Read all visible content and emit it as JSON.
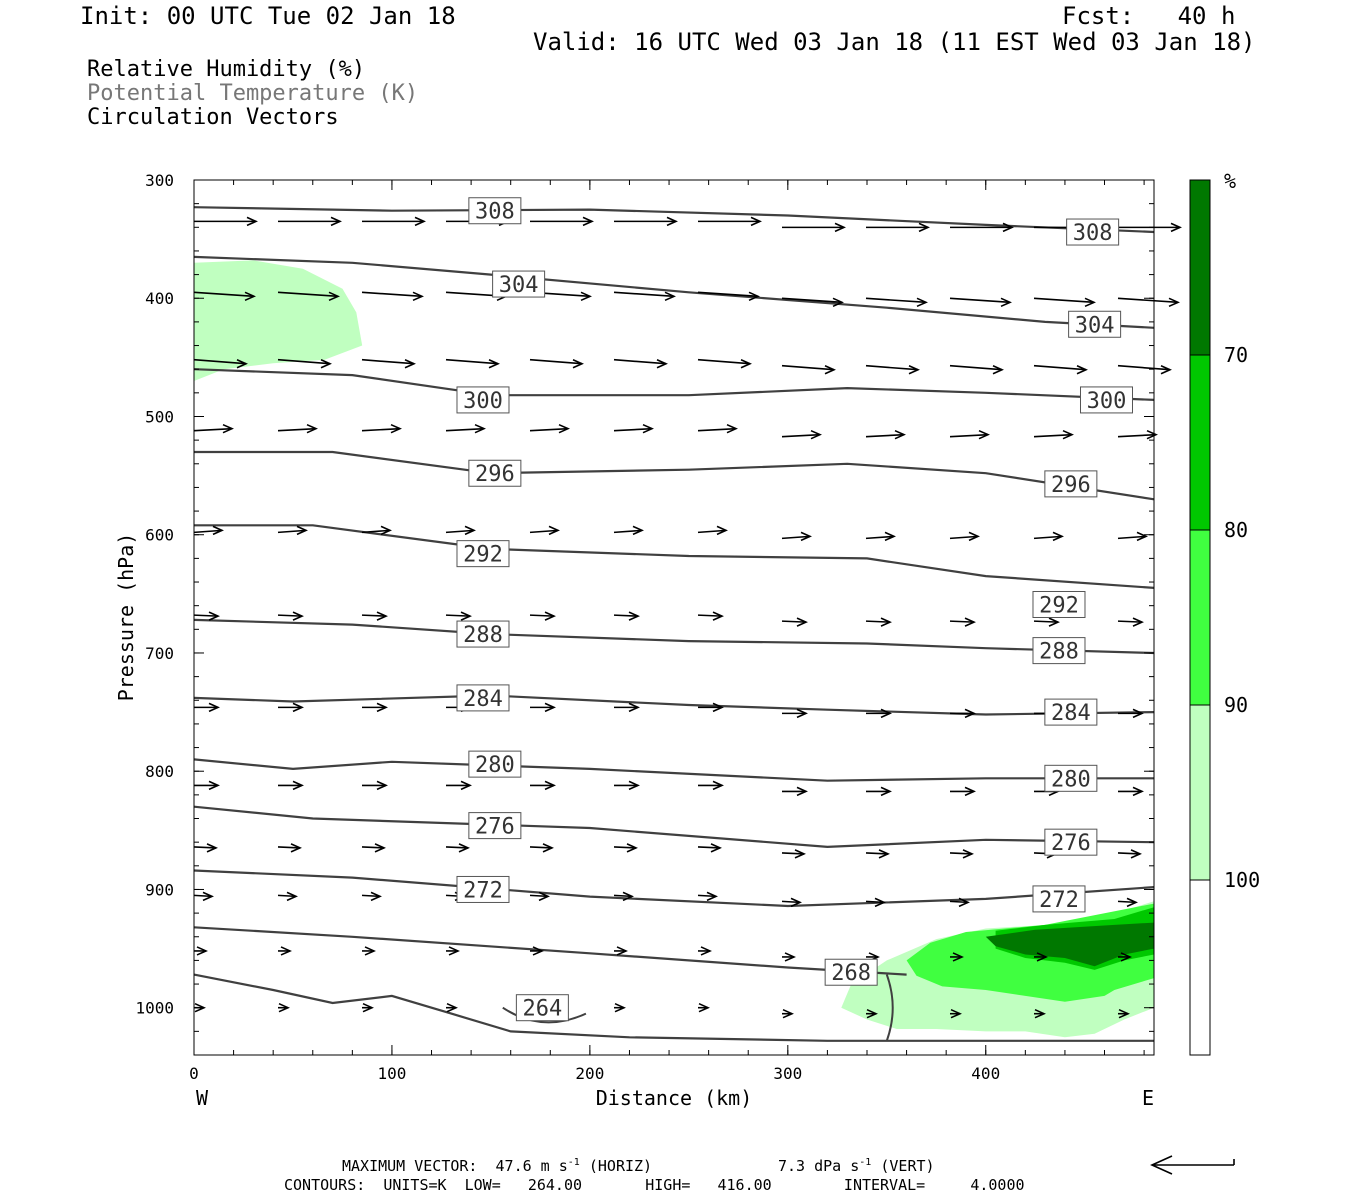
{
  "header": {
    "init": "Init: 00 UTC Tue 02 Jan 18",
    "fcst": "Fcst:   40 h",
    "valid": "Valid: 16 UTC Wed 03 Jan 18 (11 EST Wed 03 Jan 18)"
  },
  "legend": {
    "rh": "Relative Humidity (%)",
    "theta": "Potential Temperature (K)",
    "vectors": "Circulation Vectors"
  },
  "footer": {
    "max_vector": "MAXIMUM VECTOR:  47.6 m s",
    "max_vector_unit": "-1",
    "horiz": " (HORIZ)",
    "vert_value": "7.3 dPa s",
    "vert_unit": "-1",
    "vert": " (VERT)",
    "contours": "CONTOURS:  UNITS=K  LOW=   264.00       HIGH=   416.00        INTERVAL=     4.0000"
  },
  "colors": {
    "rh70": "#c0ffc0",
    "rh80": "#40ff40",
    "rh90": "#00c800",
    "rh100": "#007800",
    "contour": "#404040",
    "theta_legend": "#777777"
  },
  "chart_data": {
    "type": "contour",
    "xlabel": "Distance (km)",
    "ylabel": "Pressure (hPa)",
    "xlim": [
      0,
      485
    ],
    "ylim": [
      1040,
      300
    ],
    "xticks": [
      "0",
      "100",
      "200",
      "300",
      "400"
    ],
    "yticks": [
      "300",
      "400",
      "500",
      "600",
      "700",
      "800",
      "900",
      "1000"
    ],
    "x_side_labels": {
      "left": "W",
      "right": "E"
    },
    "colorbar": {
      "unit": "%",
      "levels": [
        "70",
        "80",
        "90",
        "100"
      ]
    },
    "theta_contour_labels": [
      {
        "value": "308",
        "x": 152,
        "p": 326
      },
      {
        "value": "308",
        "x": 454,
        "p": 344
      },
      {
        "value": "304",
        "x": 164,
        "p": 388
      },
      {
        "value": "304",
        "x": 455,
        "p": 422
      },
      {
        "value": "300",
        "x": 146,
        "p": 486
      },
      {
        "value": "300",
        "x": 461,
        "p": 486
      },
      {
        "value": "296",
        "x": 152,
        "p": 548
      },
      {
        "value": "296",
        "x": 443,
        "p": 557
      },
      {
        "value": "292",
        "x": 146,
        "p": 616
      },
      {
        "value": "292",
        "x": 437,
        "p": 659
      },
      {
        "value": "288",
        "x": 146,
        "p": 684
      },
      {
        "value": "288",
        "x": 437,
        "p": 698
      },
      {
        "value": "284",
        "x": 146,
        "p": 738
      },
      {
        "value": "284",
        "x": 443,
        "p": 750
      },
      {
        "value": "280",
        "x": 152,
        "p": 794
      },
      {
        "value": "280",
        "x": 443,
        "p": 806
      },
      {
        "value": "276",
        "x": 152,
        "p": 846
      },
      {
        "value": "276",
        "x": 443,
        "p": 860
      },
      {
        "value": "272",
        "x": 146,
        "p": 900
      },
      {
        "value": "272",
        "x": 437,
        "p": 908
      },
      {
        "value": "268",
        "x": 332,
        "p": 970
      },
      {
        "value": "264",
        "x": 176,
        "p": 1000
      }
    ]
  }
}
